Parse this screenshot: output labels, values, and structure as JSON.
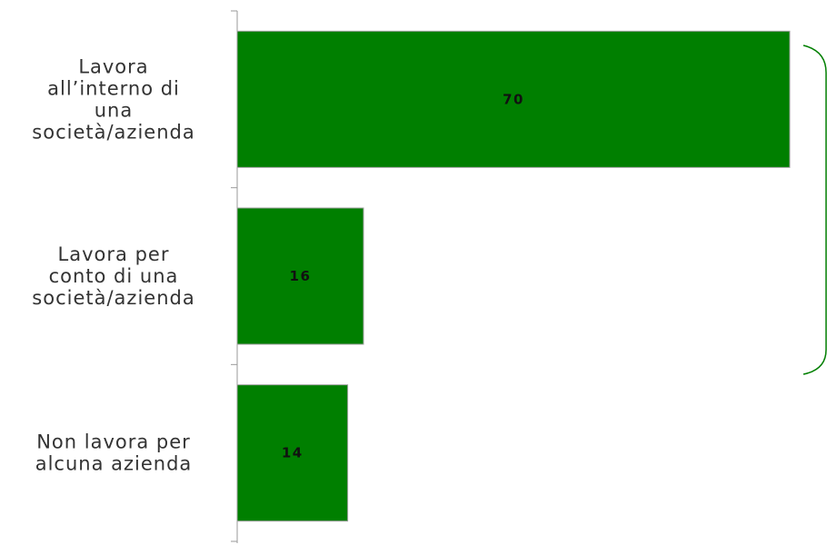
{
  "chart_data": {
    "type": "bar",
    "orientation": "horizontal",
    "categories": [
      "Lavora all’interno di una società/azienda",
      "Lavora per conto di una società/azienda",
      "Non lavora per alcuna azienda"
    ],
    "values": [
      70,
      16,
      14
    ],
    "data_labels": [
      "70",
      "16",
      "14"
    ],
    "xlim": [
      0,
      70
    ],
    "bar_color": "#007f00",
    "bracket_color": "#007f00",
    "grid": false,
    "legend": "none"
  }
}
